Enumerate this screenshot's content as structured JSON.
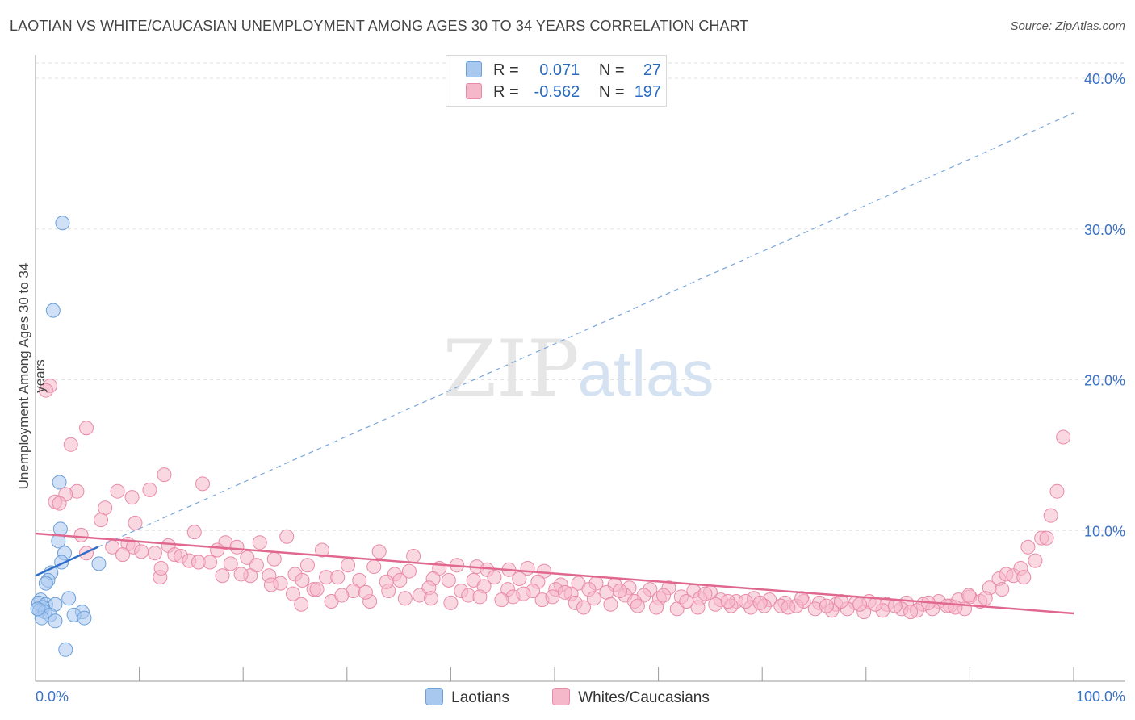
{
  "title": "LAOTIAN VS WHITE/CAUCASIAN UNEMPLOYMENT AMONG AGES 30 TO 34 YEARS CORRELATION CHART",
  "source": "Source: ZipAtlas.com",
  "watermark": {
    "zip": "ZIP",
    "atlas": "atlas"
  },
  "legend": {
    "rows": [
      {
        "r_label": "R =",
        "r_value": "0.071",
        "n_label": "N =",
        "n_value": "27",
        "color": "#a9c8f0"
      },
      {
        "r_label": "R =",
        "r_value": "-0.562",
        "n_label": "N =",
        "n_value": "197",
        "color": "#f5b8cb"
      }
    ]
  },
  "bottom_legend": [
    {
      "label": "Laotians",
      "color": "#a9c8f0"
    },
    {
      "label": "Whites/Caucasians",
      "color": "#f5b8cb"
    }
  ],
  "chart_data": {
    "type": "scatter",
    "title": "LAOTIAN VS WHITE/CAUCASIAN UNEMPLOYMENT AMONG AGES 30 TO 34 YEARS CORRELATION CHART",
    "xlabel": "",
    "ylabel": "Unemployment Among Ages 30 to 34 years",
    "xlim": [
      0,
      100
    ],
    "ylim": [
      0,
      40
    ],
    "x_tick_labels": [
      "0.0%",
      "100.0%"
    ],
    "y_ticks": [
      10,
      20,
      30,
      40
    ],
    "y_tick_labels": [
      "10.0%",
      "20.0%",
      "30.0%",
      "40.0%"
    ],
    "grid": true,
    "legend_position": "top-center",
    "series": [
      {
        "name": "Laotians",
        "color": "#a9c8f0",
        "stroke": "#6a9fd8",
        "points": [
          [
            2.6,
            30.4
          ],
          [
            1.7,
            24.6
          ],
          [
            2.3,
            13.2
          ],
          [
            2.4,
            10.1
          ],
          [
            2.2,
            9.3
          ],
          [
            2.8,
            8.5
          ],
          [
            2.5,
            7.9
          ],
          [
            6.1,
            7.8
          ],
          [
            1.5,
            7.2
          ],
          [
            1.2,
            6.7
          ],
          [
            1.0,
            6.5
          ],
          [
            3.2,
            5.5
          ],
          [
            0.5,
            5.4
          ],
          [
            0.3,
            5.2
          ],
          [
            1.0,
            5.1
          ],
          [
            1.9,
            5.1
          ],
          [
            0.7,
            4.9
          ],
          [
            0.4,
            4.7
          ],
          [
            0.9,
            4.6
          ],
          [
            4.5,
            4.6
          ],
          [
            3.7,
            4.4
          ],
          [
            1.4,
            4.4
          ],
          [
            0.6,
            4.2
          ],
          [
            4.7,
            4.2
          ],
          [
            1.9,
            4.0
          ],
          [
            2.9,
            2.1
          ],
          [
            0.2,
            4.8
          ]
        ],
        "trend_solid": [
          [
            0,
            7.0
          ],
          [
            6,
            8.9
          ]
        ],
        "trend_dashed": [
          [
            6,
            8.9
          ],
          [
            100,
            37.7
          ]
        ]
      },
      {
        "name": "Whites/Caucasians",
        "color": "#f5b8cb",
        "stroke": "#e98aa8",
        "points": [
          [
            1.4,
            19.6
          ],
          [
            1.0,
            19.3
          ],
          [
            4.9,
            16.8
          ],
          [
            3.4,
            15.7
          ],
          [
            12.4,
            13.7
          ],
          [
            16.1,
            13.1
          ],
          [
            4.0,
            12.6
          ],
          [
            2.9,
            12.4
          ],
          [
            7.9,
            12.6
          ],
          [
            11.0,
            12.7
          ],
          [
            9.3,
            12.2
          ],
          [
            1.9,
            11.9
          ],
          [
            2.3,
            11.8
          ],
          [
            6.7,
            11.5
          ],
          [
            6.3,
            10.7
          ],
          [
            9.6,
            10.5
          ],
          [
            15.3,
            9.9
          ],
          [
            4.4,
            9.7
          ],
          [
            24.2,
            9.6
          ],
          [
            21.6,
            9.2
          ],
          [
            18.3,
            9.2
          ],
          [
            12.8,
            9.0
          ],
          [
            8.9,
            9.1
          ],
          [
            9.4,
            8.9
          ],
          [
            7.4,
            8.9
          ],
          [
            19.4,
            8.9
          ],
          [
            17.5,
            8.7
          ],
          [
            27.6,
            8.7
          ],
          [
            33.1,
            8.6
          ],
          [
            10.2,
            8.6
          ],
          [
            11.5,
            8.5
          ],
          [
            13.4,
            8.4
          ],
          [
            4.9,
            8.5
          ],
          [
            14.0,
            8.3
          ],
          [
            8.4,
            8.4
          ],
          [
            20.4,
            8.2
          ],
          [
            23.0,
            8.1
          ],
          [
            14.8,
            8.0
          ],
          [
            15.7,
            7.9
          ],
          [
            16.8,
            7.9
          ],
          [
            18.8,
            7.8
          ],
          [
            21.3,
            7.7
          ],
          [
            26.2,
            7.7
          ],
          [
            30.1,
            7.7
          ],
          [
            32.6,
            7.6
          ],
          [
            38.9,
            7.5
          ],
          [
            36.4,
            8.3
          ],
          [
            40.6,
            7.7
          ],
          [
            42.5,
            7.6
          ],
          [
            43.5,
            7.4
          ],
          [
            45.6,
            7.4
          ],
          [
            47.4,
            7.5
          ],
          [
            49.0,
            7.3
          ],
          [
            36.0,
            7.3
          ],
          [
            34.6,
            7.1
          ],
          [
            25.0,
            7.1
          ],
          [
            28.0,
            6.9
          ],
          [
            20.7,
            7.0
          ],
          [
            19.8,
            7.1
          ],
          [
            22.5,
            7.0
          ],
          [
            12.0,
            6.9
          ],
          [
            25.7,
            6.7
          ],
          [
            29.1,
            6.9
          ],
          [
            31.2,
            6.7
          ],
          [
            35.1,
            6.7
          ],
          [
            38.3,
            6.8
          ],
          [
            39.8,
            6.7
          ],
          [
            42.2,
            6.7
          ],
          [
            44.2,
            6.9
          ],
          [
            46.6,
            6.8
          ],
          [
            48.4,
            6.6
          ],
          [
            50.6,
            6.4
          ],
          [
            52.3,
            6.5
          ],
          [
            54.0,
            6.5
          ],
          [
            55.8,
            6.4
          ],
          [
            57.2,
            6.2
          ],
          [
            59.2,
            6.1
          ],
          [
            61.0,
            6.2
          ],
          [
            63.4,
            6.0
          ],
          [
            65.0,
            5.9
          ],
          [
            22.7,
            6.4
          ],
          [
            26.8,
            6.1
          ],
          [
            30.6,
            6.0
          ],
          [
            34.0,
            6.0
          ],
          [
            37.9,
            6.2
          ],
          [
            41.0,
            6.0
          ],
          [
            43.2,
            6.3
          ],
          [
            45.5,
            6.1
          ],
          [
            47.9,
            6.0
          ],
          [
            50.1,
            6.1
          ],
          [
            51.6,
            5.8
          ],
          [
            53.3,
            6.1
          ],
          [
            55.0,
            5.9
          ],
          [
            56.8,
            5.7
          ],
          [
            58.6,
            5.7
          ],
          [
            60.1,
            5.5
          ],
          [
            62.2,
            5.6
          ],
          [
            64.0,
            5.5
          ],
          [
            66.0,
            5.4
          ],
          [
            67.5,
            5.3
          ],
          [
            69.2,
            5.5
          ],
          [
            70.7,
            5.4
          ],
          [
            72.2,
            5.2
          ],
          [
            74.0,
            5.3
          ],
          [
            75.5,
            5.2
          ],
          [
            77.1,
            5.1
          ],
          [
            79.0,
            5.2
          ],
          [
            80.3,
            5.3
          ],
          [
            82.0,
            5.1
          ],
          [
            83.9,
            5.2
          ],
          [
            85.5,
            5.1
          ],
          [
            87.0,
            5.3
          ],
          [
            88.9,
            5.4
          ],
          [
            90.0,
            5.6
          ],
          [
            28.5,
            5.3
          ],
          [
            32.2,
            5.3
          ],
          [
            37.0,
            5.7
          ],
          [
            41.7,
            5.7
          ],
          [
            46.0,
            5.6
          ],
          [
            48.8,
            5.4
          ],
          [
            52.0,
            5.2
          ],
          [
            55.4,
            5.1
          ],
          [
            57.7,
            5.3
          ],
          [
            59.8,
            4.9
          ],
          [
            61.8,
            4.8
          ],
          [
            63.8,
            4.9
          ],
          [
            65.5,
            5.1
          ],
          [
            67.0,
            5.0
          ],
          [
            68.9,
            4.9
          ],
          [
            70.2,
            5.0
          ],
          [
            71.8,
            5.0
          ],
          [
            73.3,
            5.0
          ],
          [
            75.1,
            4.8
          ],
          [
            76.7,
            4.7
          ],
          [
            78.2,
            4.8
          ],
          [
            79.8,
            4.6
          ],
          [
            81.6,
            4.7
          ],
          [
            83.4,
            4.8
          ],
          [
            84.9,
            4.7
          ],
          [
            86.4,
            4.8
          ],
          [
            88.1,
            5.0
          ],
          [
            89.5,
            4.8
          ],
          [
            91.0,
            5.3
          ],
          [
            91.9,
            6.2
          ],
          [
            92.8,
            6.8
          ],
          [
            93.5,
            7.1
          ],
          [
            94.2,
            7.0
          ],
          [
            94.9,
            7.5
          ],
          [
            95.6,
            8.9
          ],
          [
            96.3,
            8.0
          ],
          [
            96.9,
            9.5
          ],
          [
            97.4,
            9.5
          ],
          [
            97.8,
            11.0
          ],
          [
            98.4,
            12.6
          ],
          [
            99.0,
            16.2
          ],
          [
            49.8,
            5.6
          ],
          [
            53.8,
            5.5
          ],
          [
            58.0,
            5.0
          ],
          [
            62.7,
            5.3
          ],
          [
            66.7,
            5.3
          ],
          [
            69.8,
            5.2
          ],
          [
            73.8,
            5.5
          ],
          [
            77.6,
            5.3
          ],
          [
            80.9,
            5.1
          ],
          [
            84.3,
            4.6
          ],
          [
            87.8,
            5.0
          ],
          [
            89.9,
            5.7
          ],
          [
            44.9,
            5.4
          ],
          [
            40.0,
            5.2
          ],
          [
            35.6,
            5.5
          ],
          [
            31.8,
            5.9
          ],
          [
            27.1,
            6.1
          ],
          [
            23.6,
            6.5
          ],
          [
            18.0,
            7.0
          ],
          [
            12.1,
            7.5
          ],
          [
            24.8,
            5.8
          ],
          [
            29.5,
            5.7
          ],
          [
            33.8,
            6.6
          ],
          [
            38.1,
            5.5
          ],
          [
            42.8,
            5.6
          ],
          [
            47.0,
            5.8
          ],
          [
            51.0,
            5.9
          ],
          [
            56.3,
            6.0
          ],
          [
            60.5,
            5.7
          ],
          [
            64.5,
            5.8
          ],
          [
            68.4,
            5.3
          ],
          [
            72.5,
            4.9
          ],
          [
            76.2,
            5.0
          ],
          [
            79.4,
            5.1
          ],
          [
            82.8,
            5.0
          ],
          [
            86.0,
            5.2
          ],
          [
            88.6,
            4.9
          ],
          [
            91.5,
            5.5
          ],
          [
            93.1,
            6.1
          ],
          [
            95.2,
            6.9
          ],
          [
            25.6,
            5.1
          ],
          [
            52.8,
            4.9
          ]
        ],
        "trend_solid": [
          [
            0,
            9.8
          ],
          [
            100,
            4.5
          ]
        ]
      }
    ]
  }
}
